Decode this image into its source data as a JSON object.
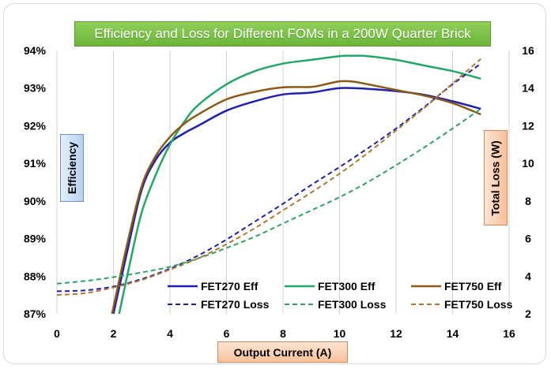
{
  "chart_data": {
    "type": "line",
    "title": "Efficiency and Loss  for Different FOMs in a 200W Quarter Brick",
    "xlabel": "Output Current  (A)",
    "ylabel_left": "Efficiency",
    "ylabel_right": "Total Loss (W)",
    "xlim": [
      0,
      16
    ],
    "ylim_left": [
      87,
      94
    ],
    "ylim_right": [
      2,
      16
    ],
    "x_ticks": [
      "0",
      "2",
      "4",
      "6",
      "8",
      "10",
      "12",
      "14",
      "16"
    ],
    "y_ticks_left": [
      "87%",
      "88%",
      "89%",
      "90%",
      "91%",
      "92%",
      "93%",
      "94%"
    ],
    "y_ticks_right": [
      "2",
      "4",
      "6",
      "8",
      "10",
      "12",
      "14",
      "16"
    ],
    "grid": "vertical",
    "series": [
      {
        "name": "FET270 Eff",
        "axis": "left",
        "style": "solid",
        "color": "#1f1fb4",
        "x": [
          2.0,
          2.5,
          3,
          3.5,
          4,
          4.5,
          5,
          6,
          7,
          8,
          9,
          10,
          11,
          12,
          13,
          14,
          15
        ],
        "y": [
          87.0,
          88.7,
          90.3,
          91.1,
          91.55,
          91.8,
          92.0,
          92.4,
          92.65,
          92.83,
          92.88,
          93.0,
          92.98,
          92.92,
          92.82,
          92.65,
          92.45
        ]
      },
      {
        "name": "FET300 Eff",
        "axis": "left",
        "style": "solid",
        "color": "#1fa868",
        "x": [
          2.2,
          2.6,
          3,
          3.5,
          4,
          4.5,
          5,
          6,
          7,
          8,
          9,
          10,
          10.5,
          11,
          12,
          13,
          14,
          15
        ],
        "y": [
          87.0,
          88.4,
          89.7,
          90.7,
          91.5,
          92.1,
          92.55,
          93.1,
          93.45,
          93.65,
          93.75,
          93.85,
          93.86,
          93.85,
          93.75,
          93.6,
          93.45,
          93.25
        ]
      },
      {
        "name": "FET750 Eff",
        "axis": "left",
        "style": "solid",
        "color": "#8b5a14",
        "x": [
          1.95,
          2.5,
          3,
          3.5,
          4,
          4.5,
          5,
          6,
          7,
          8,
          9,
          9.5,
          10,
          10.5,
          11,
          12,
          13,
          14,
          15
        ],
        "y": [
          87.0,
          88.9,
          90.4,
          91.2,
          91.7,
          92.05,
          92.3,
          92.7,
          92.9,
          93.02,
          93.03,
          93.1,
          93.18,
          93.17,
          93.1,
          92.95,
          92.8,
          92.6,
          92.3
        ]
      },
      {
        "name": "FET270 Loss",
        "axis": "right",
        "style": "dashed",
        "color": "#1f1fb4",
        "x": [
          0,
          1,
          2,
          3,
          4,
          5,
          6,
          7,
          8,
          9,
          10,
          11,
          12,
          13,
          14,
          15
        ],
        "y": [
          3.2,
          3.25,
          3.45,
          3.85,
          4.4,
          5.1,
          5.95,
          6.9,
          7.85,
          8.85,
          9.8,
          10.8,
          11.85,
          13.0,
          14.2,
          15.3
        ]
      },
      {
        "name": "FET300 Loss",
        "axis": "right",
        "style": "dashed",
        "color": "#2aa65e",
        "x": [
          0,
          1,
          2,
          3,
          4,
          5,
          6,
          7,
          8,
          9,
          10,
          11,
          12,
          13,
          14,
          15
        ],
        "y": [
          3.6,
          3.75,
          3.95,
          4.2,
          4.5,
          4.95,
          5.5,
          6.1,
          6.8,
          7.5,
          8.2,
          9.0,
          9.9,
          10.85,
          11.85,
          12.9
        ]
      },
      {
        "name": "FET750 Loss",
        "axis": "right",
        "style": "dashed",
        "color": "#b5772e",
        "x": [
          0,
          1,
          2,
          3,
          4,
          5,
          6,
          7,
          8,
          9,
          10,
          11,
          12,
          13,
          14,
          15
        ],
        "y": [
          3.0,
          3.1,
          3.4,
          3.8,
          4.35,
          4.95,
          5.7,
          6.55,
          7.5,
          8.45,
          9.45,
          10.55,
          11.75,
          12.95,
          14.25,
          15.55
        ]
      }
    ],
    "legend": "bottom-inside"
  }
}
